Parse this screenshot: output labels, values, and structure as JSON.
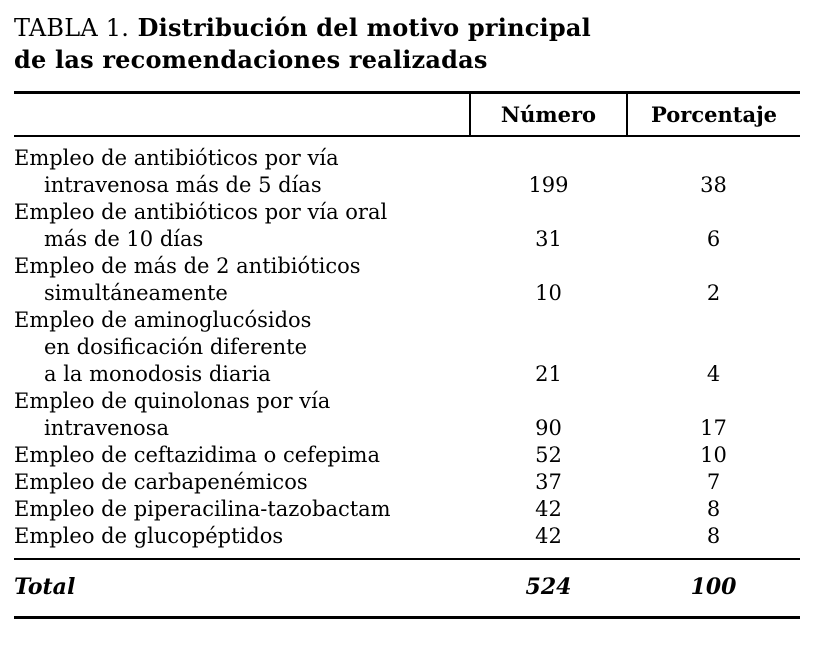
{
  "title": {
    "prefix": "TABLA 1.",
    "rest": "Distribución del motivo principal",
    "line2": "de las recomendaciones realizadas"
  },
  "table": {
    "headers": {
      "numero": "Número",
      "porcentaje": "Porcentaje"
    },
    "rows": [
      {
        "lines": [
          "Empleo de antibióticos por vía",
          "intravenosa más de 5 días"
        ],
        "numero": "199",
        "porcentaje": "38"
      },
      {
        "lines": [
          "Empleo de antibióticos por vía oral",
          "más de 10 días"
        ],
        "numero": "31",
        "porcentaje": "6"
      },
      {
        "lines": [
          "Empleo de más de 2 antibióticos",
          "simultáneamente"
        ],
        "numero": "10",
        "porcentaje": "2"
      },
      {
        "lines": [
          "Empleo de aminoglucósidos",
          "en dosificación diferente",
          "a la monodosis diaria"
        ],
        "numero": "21",
        "porcentaje": "4"
      },
      {
        "lines": [
          "Empleo de quinolonas por vía",
          "intravenosa"
        ],
        "numero": "90",
        "porcentaje": "17"
      },
      {
        "lines": [
          "Empleo de ceftazidima o cefepima"
        ],
        "numero": "52",
        "porcentaje": "10"
      },
      {
        "lines": [
          "Empleo de carbapenémicos"
        ],
        "numero": "37",
        "porcentaje": "7"
      },
      {
        "lines": [
          "Empleo de piperacilina-tazobactam"
        ],
        "numero": "42",
        "porcentaje": "8"
      },
      {
        "lines": [
          "Empleo de glucopéptidos"
        ],
        "numero": "42",
        "porcentaje": "8"
      }
    ],
    "total": {
      "label": "Total",
      "numero": "524",
      "porcentaje": "100"
    }
  }
}
